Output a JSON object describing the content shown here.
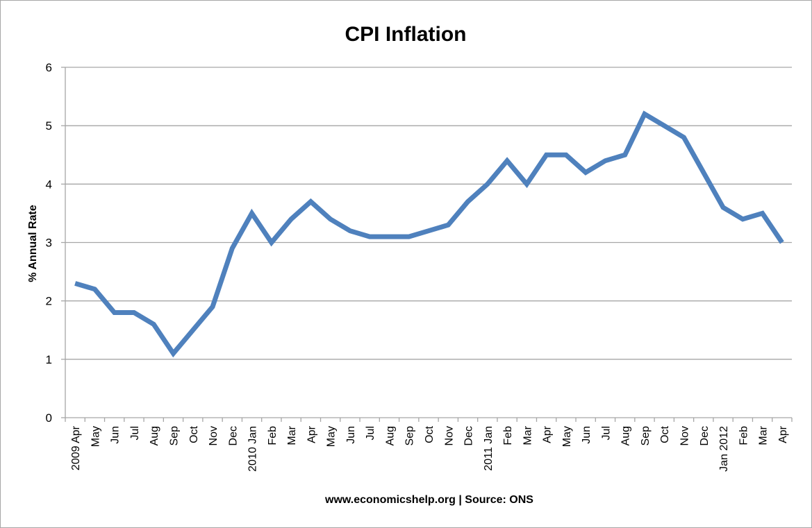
{
  "chart_data": {
    "type": "line",
    "title": "CPI Inflation",
    "xlabel": "www.economicshelp.org | Source: ONS",
    "ylabel": "% Annual Rate",
    "ylim": [
      0,
      6
    ],
    "yticks": [
      0,
      1,
      2,
      3,
      4,
      5,
      6
    ],
    "grid": true,
    "legend": "none",
    "categories": [
      "2009 Apr",
      "May",
      "Jun",
      "Jul",
      "Aug",
      "Sep",
      "Oct",
      "Nov",
      "Dec",
      "2010 Jan",
      "Feb",
      "Mar",
      "Apr",
      "May",
      "Jun",
      "Jul",
      "Aug",
      "Sep",
      "Oct",
      "Nov",
      "Dec",
      "2011 Jan",
      "Feb",
      "Mar",
      "Apr",
      "May",
      "Jun",
      "Jul",
      "Aug",
      "Sep",
      "Oct",
      "Nov",
      "Dec",
      "Jan 2012",
      "Feb",
      "Mar",
      "Apr"
    ],
    "series": [
      {
        "values": [
          2.3,
          2.2,
          1.8,
          1.8,
          1.6,
          1.1,
          1.5,
          1.9,
          2.9,
          3.5,
          3.0,
          3.4,
          3.7,
          3.4,
          3.2,
          3.1,
          3.1,
          3.1,
          3.2,
          3.3,
          3.7,
          4.0,
          4.4,
          4.0,
          4.5,
          4.5,
          4.2,
          4.4,
          4.5,
          5.2,
          5.0,
          4.8,
          4.2,
          3.6,
          3.4,
          3.5,
          3.0
        ]
      }
    ],
    "line_color": "#4f81bd",
    "grid_color": "#a6a6a6"
  }
}
